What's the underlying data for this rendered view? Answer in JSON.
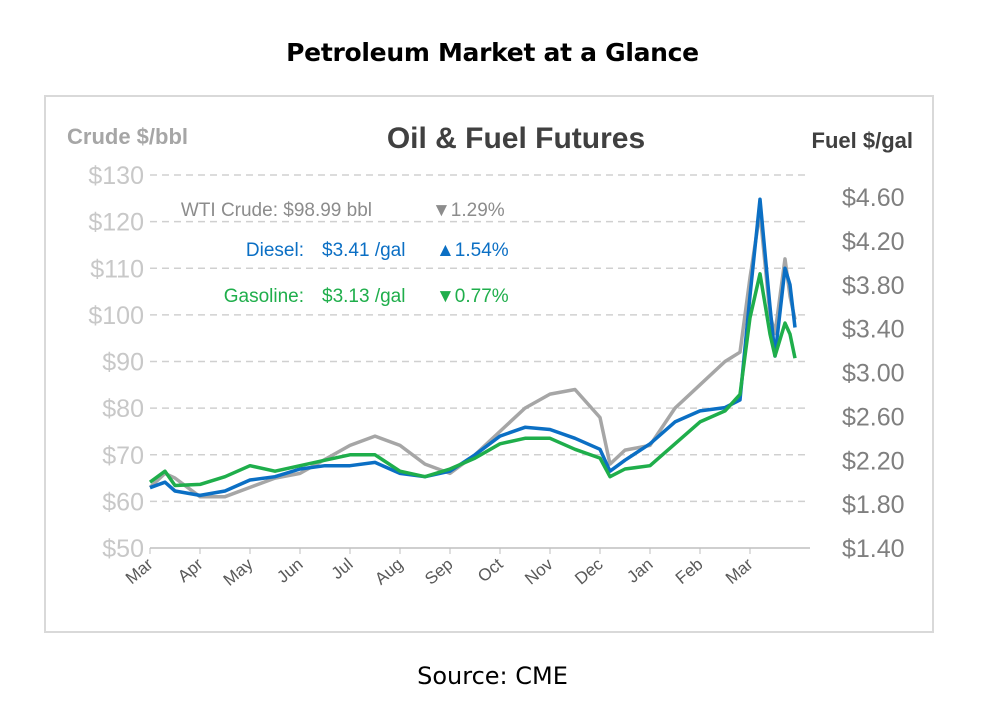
{
  "page_title": "Petroleum Market at a Glance",
  "source": "Source: CME",
  "chart_data": {
    "type": "line",
    "title": "Oil & Fuel Futures",
    "ylabel_left": "Crude $/bbl",
    "ylabel_right": "Fuel $/gal",
    "ylim_left": [
      50,
      130
    ],
    "ylim_right": [
      1.4,
      4.6
    ],
    "left_ticks": [
      "$50",
      "$60",
      "$70",
      "$80",
      "$90",
      "$100",
      "$110",
      "$120",
      "$130"
    ],
    "right_ticks": [
      "$1.40",
      "$1.80",
      "$2.20",
      "$2.60",
      "$3.00",
      "$3.40",
      "$3.80",
      "$4.20",
      "$4.60"
    ],
    "x_ticks": [
      "Mar",
      "Apr",
      "May",
      "Jun",
      "Jul",
      "Aug",
      "Sep",
      "Oct",
      "Nov",
      "Dec",
      "Jan",
      "Feb",
      "Mar"
    ],
    "grid": "horizontal dashed",
    "legend": [
      {
        "label": "WTI Crude:",
        "value": "$98.99 bbl",
        "arrow": "▼",
        "change": "1.29%",
        "color": "#8c8c8c"
      },
      {
        "label": "Diesel:",
        "value": "$3.41 /gal",
        "arrow": "▲",
        "change": "1.54%",
        "color": "#0b6fc4"
      },
      {
        "label": "Gasoline:",
        "value": "$3.13 /gal",
        "arrow": "▼",
        "change": "0.77%",
        "color": "#1fae4b"
      }
    ],
    "series": [
      {
        "name": "WTI Crude",
        "axis": "left",
        "color": "#a6a6a6",
        "x": [
          0,
          0.3,
          0.5,
          1,
          1.5,
          2,
          2.5,
          3,
          3.5,
          4,
          4.5,
          5,
          5.5,
          6,
          6.5,
          7,
          7.5,
          8,
          8.5,
          9,
          9.2,
          9.5,
          10,
          10.5,
          11,
          11.5,
          11.8,
          12,
          12.2,
          12.4,
          12.5,
          12.7,
          12.8,
          12.9
        ],
        "y": [
          63,
          66,
          65,
          61,
          61,
          63,
          65,
          66,
          69,
          72,
          74,
          72,
          68,
          66,
          70,
          75,
          80,
          83,
          84,
          78,
          68,
          71,
          72,
          80,
          85,
          90,
          92,
          108,
          122,
          100,
          96,
          112,
          104,
          99
        ]
      },
      {
        "name": "Diesel",
        "axis": "right",
        "color": "#0b6fc4",
        "x": [
          0,
          0.3,
          0.5,
          1,
          1.5,
          2,
          2.5,
          3,
          3.5,
          4,
          4.5,
          5,
          5.5,
          6,
          6.5,
          7,
          7.5,
          8,
          8.5,
          9,
          9.2,
          9.5,
          10,
          10.5,
          11,
          11.5,
          11.8,
          12,
          12.2,
          12.4,
          12.5,
          12.7,
          12.8,
          12.9
        ],
        "y": [
          1.95,
          2.0,
          1.92,
          1.88,
          1.92,
          2.02,
          2.05,
          2.12,
          2.15,
          2.15,
          2.18,
          2.08,
          2.05,
          2.1,
          2.25,
          2.42,
          2.5,
          2.48,
          2.4,
          2.3,
          2.1,
          2.2,
          2.35,
          2.55,
          2.65,
          2.68,
          2.75,
          3.7,
          4.58,
          3.6,
          3.15,
          3.95,
          3.8,
          3.41
        ]
      },
      {
        "name": "Gasoline",
        "axis": "right",
        "color": "#1fae4b",
        "x": [
          0,
          0.3,
          0.5,
          1,
          1.5,
          2,
          2.5,
          3,
          3.5,
          4,
          4.5,
          5,
          5.5,
          6,
          6.5,
          7,
          7.5,
          8,
          8.5,
          9,
          9.2,
          9.5,
          10,
          10.5,
          11,
          11.5,
          11.8,
          12,
          12.2,
          12.4,
          12.5,
          12.7,
          12.8,
          12.9
        ],
        "y": [
          2.0,
          2.1,
          1.97,
          1.98,
          2.05,
          2.15,
          2.1,
          2.15,
          2.2,
          2.25,
          2.25,
          2.1,
          2.05,
          2.12,
          2.22,
          2.35,
          2.4,
          2.4,
          2.3,
          2.22,
          2.05,
          2.12,
          2.15,
          2.35,
          2.55,
          2.65,
          2.8,
          3.5,
          3.9,
          3.35,
          3.15,
          3.45,
          3.35,
          3.13
        ]
      }
    ]
  }
}
